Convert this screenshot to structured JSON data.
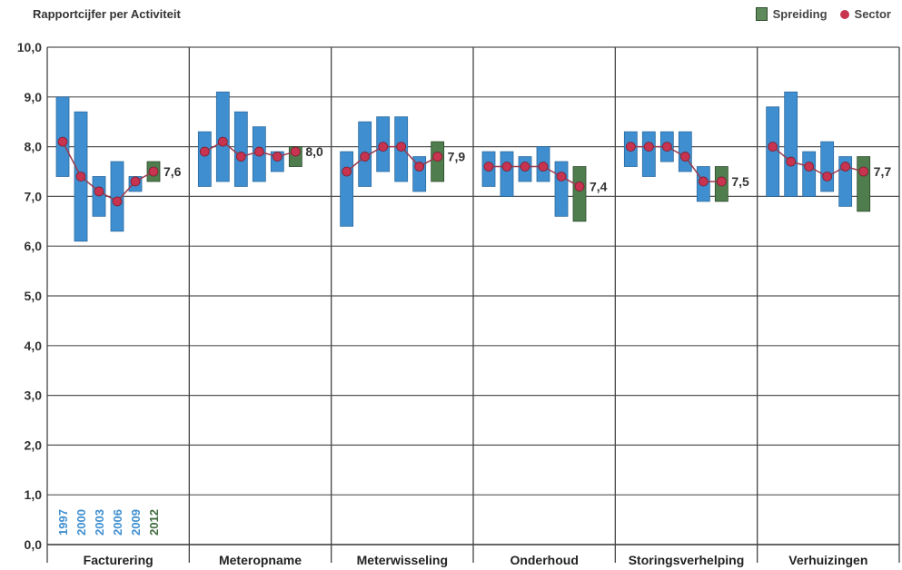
{
  "chart_data": {
    "type": "range-bar-line",
    "title": "Rapportcijfer per Activiteit",
    "legend": [
      {
        "label": "Spreiding",
        "color": "#5e8a5c"
      },
      {
        "label": "Sector",
        "color": "#c8344f"
      }
    ],
    "legend_position": "top-right",
    "ylim": [
      0,
      10
    ],
    "y_ticks": [
      "0,0",
      "1,0",
      "2,0",
      "3,0",
      "4,0",
      "5,0",
      "6,0",
      "7,0",
      "8,0",
      "9,0",
      "10,0"
    ],
    "years": [
      "1997",
      "2000",
      "2003",
      "2006",
      "2009",
      "2012"
    ],
    "colors": {
      "range_past": "#3f8fd0",
      "range_current": "#4f7d4d",
      "sector": "#c8344f",
      "line": "#9a3a4e"
    },
    "groups": [
      {
        "name": "Facturering",
        "final_label": "7,6",
        "ranges": [
          [
            7.4,
            9.0
          ],
          [
            6.1,
            8.7
          ],
          [
            6.6,
            7.4
          ],
          [
            6.3,
            7.7
          ],
          [
            7.1,
            7.4
          ],
          [
            7.3,
            7.7
          ]
        ],
        "sector": [
          8.1,
          7.4,
          7.1,
          6.9,
          7.3,
          7.5
        ]
      },
      {
        "name": "Meteropname",
        "final_label": "8,0",
        "ranges": [
          [
            7.2,
            8.3
          ],
          [
            7.3,
            9.1
          ],
          [
            7.2,
            8.7
          ],
          [
            7.3,
            8.4
          ],
          [
            7.5,
            7.9
          ],
          [
            7.6,
            8.0
          ]
        ],
        "sector": [
          7.9,
          8.1,
          7.8,
          7.9,
          7.8,
          7.9
        ]
      },
      {
        "name": "Meterwisseling",
        "final_label": "7,9",
        "ranges": [
          [
            6.4,
            7.9
          ],
          [
            7.2,
            8.5
          ],
          [
            7.5,
            8.6
          ],
          [
            7.3,
            8.6
          ],
          [
            7.1,
            7.8
          ],
          [
            7.3,
            8.1
          ]
        ],
        "sector": [
          7.5,
          7.8,
          8.0,
          8.0,
          7.6,
          7.8
        ]
      },
      {
        "name": "Onderhoud",
        "final_label": "7,4",
        "ranges": [
          [
            7.2,
            7.9
          ],
          [
            7.0,
            7.9
          ],
          [
            7.3,
            7.8
          ],
          [
            7.3,
            8.0
          ],
          [
            6.6,
            7.7
          ],
          [
            6.5,
            7.6
          ]
        ],
        "sector": [
          7.6,
          7.6,
          7.6,
          7.6,
          7.4,
          7.2
        ]
      },
      {
        "name": "Storingsverhelping",
        "final_label": "7,5",
        "ranges": [
          [
            7.6,
            8.3
          ],
          [
            7.4,
            8.3
          ],
          [
            7.7,
            8.3
          ],
          [
            7.5,
            8.3
          ],
          [
            6.9,
            7.6
          ],
          [
            6.9,
            7.6
          ]
        ],
        "sector": [
          8.0,
          8.0,
          8.0,
          7.8,
          7.3,
          7.3
        ]
      },
      {
        "name": "Verhuizingen",
        "final_label": "7,7",
        "ranges": [
          [
            7.0,
            8.8
          ],
          [
            7.0,
            9.1
          ],
          [
            7.0,
            7.9
          ],
          [
            7.1,
            8.1
          ],
          [
            6.8,
            7.8
          ],
          [
            6.7,
            7.8
          ]
        ],
        "sector": [
          8.0,
          7.7,
          7.6,
          7.4,
          7.6,
          7.5
        ]
      }
    ]
  }
}
